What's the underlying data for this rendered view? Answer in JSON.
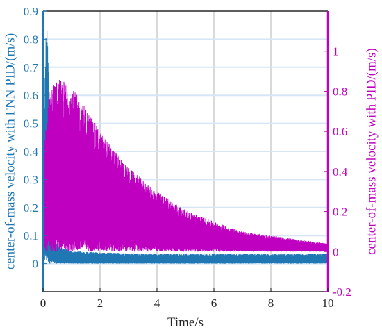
{
  "chart_data": {
    "type": "line",
    "xlabel": "Time/s",
    "ylabel_left": "center-of-mass velocity with FNN PID/(m/s)",
    "ylabel_right": "center-of-mass velocity with PID/(m/s)",
    "xlim": [
      0,
      10
    ],
    "ylim_left": [
      -0.1,
      0.9
    ],
    "ylim_right": [
      -0.2,
      1.2
    ],
    "x_ticks": [
      0,
      2,
      4,
      6,
      8,
      10
    ],
    "y_left_ticks": [
      0,
      0.1,
      0.2,
      0.3,
      0.4,
      0.5,
      0.6,
      0.7,
      0.8,
      0.9
    ],
    "y_right_ticks": [
      -0.2,
      0,
      0.2,
      0.4,
      0.6,
      0.8,
      1
    ],
    "grid": true,
    "legend": "none",
    "series": [
      {
        "axis": "left",
        "color": "#1f77b4",
        "envelope_x": [
          0,
          0.05,
          0.1,
          0.15,
          0.2,
          0.25,
          0.3,
          0.4,
          0.6,
          1,
          2,
          4,
          6,
          8,
          10
        ],
        "envelope_upper": [
          0.05,
          0.6,
          0.82,
          0.84,
          0.72,
          0.45,
          0.2,
          0.09,
          0.06,
          0.045,
          0.04,
          0.035,
          0.035,
          0.035,
          0.035
        ],
        "envelope_lower": [
          0,
          0,
          0,
          0,
          0,
          0,
          0,
          0,
          0,
          0,
          0,
          0,
          0,
          0,
          0
        ]
      },
      {
        "axis": "right",
        "color": "#c000c0",
        "envelope_x": [
          0,
          0.05,
          0.2,
          0.4,
          0.6,
          0.8,
          1,
          1.5,
          2,
          3,
          4,
          5,
          6,
          7,
          8,
          9,
          10
        ],
        "envelope_upper": [
          0.05,
          0.55,
          0.8,
          0.85,
          0.86,
          0.85,
          0.82,
          0.72,
          0.6,
          0.42,
          0.3,
          0.21,
          0.15,
          0.1,
          0.08,
          0.06,
          0.04
        ],
        "envelope_lower": [
          0,
          0,
          0,
          0,
          0,
          0,
          0,
          0,
          0,
          0,
          0,
          0,
          0,
          0,
          0,
          0,
          0
        ]
      }
    ]
  }
}
